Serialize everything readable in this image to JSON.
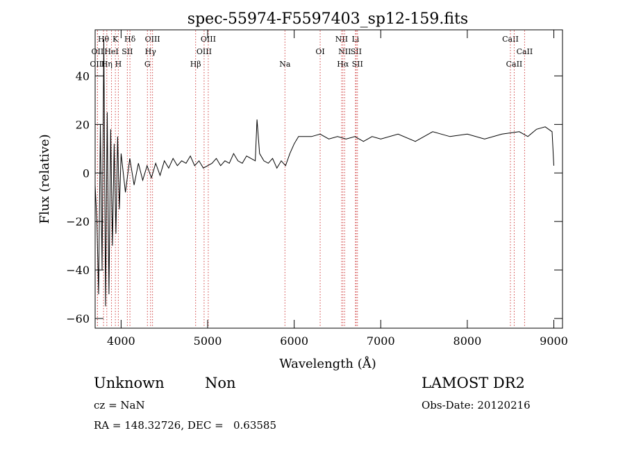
{
  "chart_data": {
    "type": "line",
    "title": "spec-55974-F5597403_sp12-159.fits",
    "xlabel": "Wavelength (Å)",
    "ylabel": "Flux (relative)",
    "xlim": [
      3700,
      9100
    ],
    "ylim": [
      -64,
      59
    ],
    "xticks": [
      4000,
      5000,
      6000,
      7000,
      8000,
      9000
    ],
    "yticks": [
      -60,
      -40,
      -20,
      0,
      20,
      40
    ],
    "series": [
      {
        "values_note": "",
        "x": [
          3700,
          3720,
          3740,
          3760,
          3780,
          3800,
          3820,
          3840,
          3860,
          3880,
          3900,
          3920,
          3940,
          3960,
          3980,
          4000,
          4050,
          4100,
          4150,
          4200,
          4250,
          4300,
          4350,
          4400,
          4450,
          4500,
          4550,
          4600,
          4650,
          4700,
          4750,
          4800,
          4850,
          4900,
          4950,
          5000,
          5050,
          5100,
          5150,
          5200,
          5250,
          5300,
          5350,
          5400,
          5450,
          5500,
          5550,
          5570,
          5600,
          5650,
          5700,
          5750,
          5800,
          5850,
          5900,
          5950,
          6000,
          6050,
          6100,
          6200,
          6300,
          6400,
          6500,
          6600,
          6700,
          6800,
          6900,
          7000,
          7200,
          7400,
          7500,
          7600,
          7700,
          7800,
          8000,
          8200,
          8400,
          8600,
          8700,
          8800,
          8900,
          8980,
          9000
        ],
        "y": [
          -5,
          -20,
          -50,
          20,
          -40,
          55,
          -55,
          25,
          -50,
          18,
          -30,
          12,
          -25,
          15,
          -15,
          8,
          -8,
          6,
          -5,
          4,
          -3,
          3,
          -2,
          4,
          -1,
          5,
          2,
          6,
          3,
          5,
          4,
          7,
          3,
          5,
          2,
          3,
          4,
          6,
          3,
          5,
          4,
          8,
          5,
          4,
          7,
          6,
          5,
          22,
          8,
          5,
          4,
          6,
          2,
          5,
          3,
          8,
          12,
          15,
          15,
          15,
          16,
          14,
          15,
          14,
          15,
          13,
          15,
          14,
          16,
          13,
          15,
          17,
          16,
          15,
          16,
          14,
          16,
          17,
          15,
          18,
          19,
          17,
          3
        ]
      }
    ],
    "lines": [
      {
        "name": "Hθ",
        "x": 3797,
        "row": 0
      },
      {
        "name": "K",
        "x": 3934,
        "row": 0
      },
      {
        "name": "Hδ",
        "x": 4102,
        "row": 0
      },
      {
        "name": "OIII",
        "x": 4363,
        "row": 0
      },
      {
        "name": "OIII",
        "x": 5007,
        "row": 0
      },
      {
        "name": "NII",
        "x": 6548,
        "row": 0
      },
      {
        "name": "Li",
        "x": 6708,
        "row": 0
      },
      {
        "name": "CaII",
        "x": 8498,
        "row": 0
      },
      {
        "name": "OII",
        "x": 3727,
        "row": 1
      },
      {
        "name": "HeI",
        "x": 3889,
        "row": 1
      },
      {
        "name": "SII",
        "x": 4072,
        "row": 1
      },
      {
        "name": "Hγ",
        "x": 4340,
        "row": 1
      },
      {
        "name": "OIII",
        "x": 4959,
        "row": 1
      },
      {
        "name": "OI",
        "x": 6300,
        "row": 1
      },
      {
        "name": "NII",
        "x": 6583,
        "row": 1
      },
      {
        "name": "SII",
        "x": 6716,
        "row": 1
      },
      {
        "name": "CaII",
        "x": 8662,
        "row": 1
      },
      {
        "name": "OIII",
        "x": 3727,
        "row": 2
      },
      {
        "name": "Hη",
        "x": 3835,
        "row": 2
      },
      {
        "name": "H",
        "x": 3968,
        "row": 2
      },
      {
        "name": "G",
        "x": 4304,
        "row": 2
      },
      {
        "name": "Hβ",
        "x": 4861,
        "row": 2
      },
      {
        "name": "Na",
        "x": 5893,
        "row": 2
      },
      {
        "name": "Hα",
        "x": 6563,
        "row": 2
      },
      {
        "name": "SII",
        "x": 6731,
        "row": 2
      },
      {
        "name": "CaII",
        "x": 8542,
        "row": 2
      }
    ]
  },
  "info": {
    "class": "Unknown",
    "subclass": "Non",
    "cz": "cz = NaN",
    "radec": "RA = 148.32726, DEC =   0.63585",
    "survey": "LAMOST DR2",
    "obsdate": "Obs-Date: 20120216"
  }
}
